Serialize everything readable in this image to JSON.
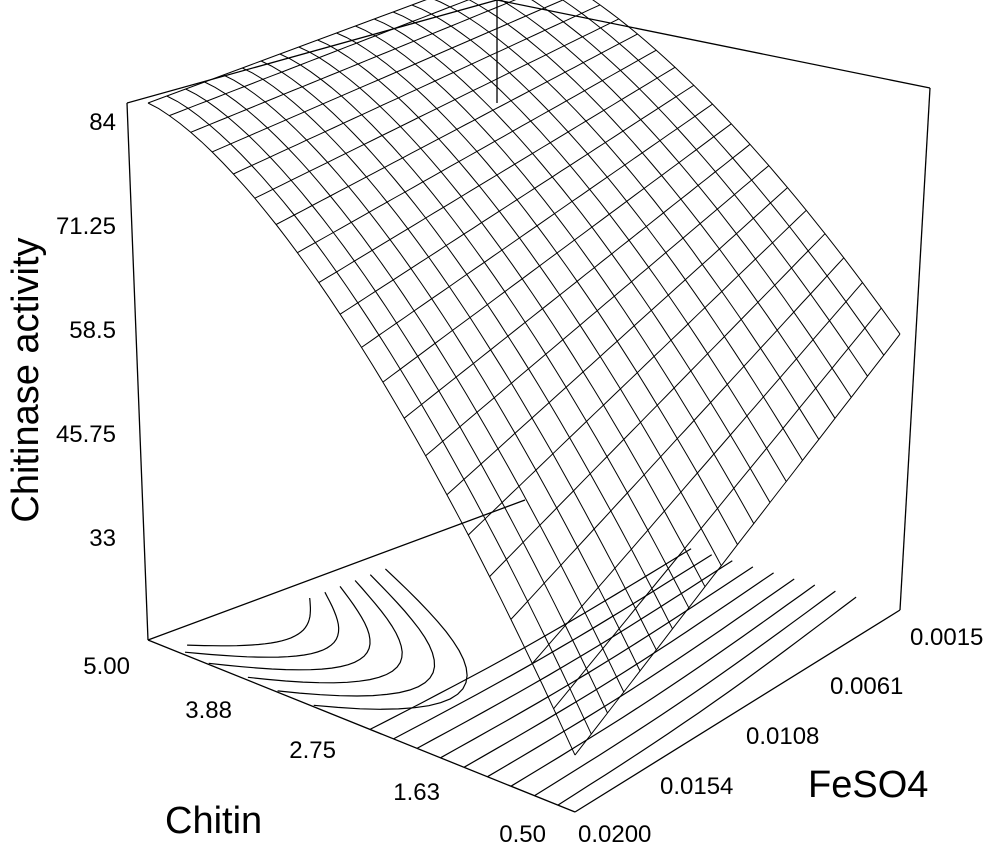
{
  "chart_data": {
    "type": "surface",
    "title": "",
    "zlabel": "Chitinase activity",
    "xlabel": "Chitin",
    "ylabel": "FeSO4",
    "z_ticks": [
      "84",
      "71.25",
      "58.5",
      "45.75",
      "33"
    ],
    "x_ticks": [
      "5.00",
      "3.88",
      "2.75",
      "1.63",
      "0.50"
    ],
    "y_ticks": [
      "0.0015",
      "0.0061",
      "0.0108",
      "0.0154",
      "0.0200"
    ],
    "zlim": [
      20.25,
      84
    ],
    "xlim": [
      0.5,
      5.0
    ],
    "ylim": [
      0.0015,
      0.02
    ],
    "surface_corners": [
      {
        "chitin": 5.0,
        "feso4": 0.02,
        "activity": 84
      },
      {
        "chitin": 5.0,
        "feso4": 0.0015,
        "activity": 84
      },
      {
        "chitin": 0.5,
        "feso4": 0.0015,
        "activity": 53
      },
      {
        "chitin": 0.5,
        "feso4": 0.02,
        "activity": 27
      }
    ],
    "contours_on_floor": true,
    "grid": false
  }
}
